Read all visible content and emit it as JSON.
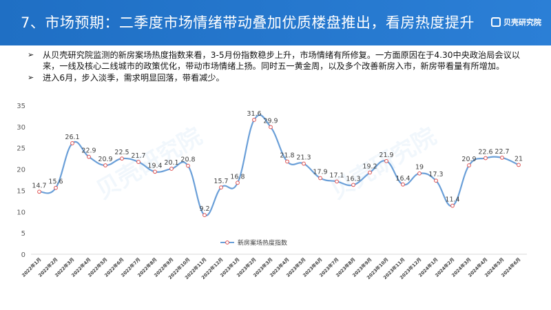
{
  "header": {
    "title": "7、市场预期：二季度市场情绪带动叠加优质楼盘推出，看房热度提升",
    "brand": "贝壳研究院"
  },
  "bullets": [
    "从贝壳研究院监测的新房案场热度指数来看，3-5月份指数稳步上升，市场情绪有所修复。一方面原因在于4.30中央政治局会议以来，一线及核心二线城市的政策优化，带动市场情绪上扬。同时五一黄金周，以及多个改善新房入市，新房带看量有所增加。",
    "进入6月，步入淡季，需求明显回落，带看减少。"
  ],
  "watermark": "贝壳研究院",
  "colors": {
    "header": "#2b7fd6",
    "line": "#6a9fd8",
    "marker": "#e05050"
  },
  "chart_data": {
    "type": "line",
    "categories": [
      "2022年1月",
      "2022年2月",
      "2022年3月",
      "2022年4月",
      "2022年5月",
      "2022年6月",
      "2022年7月",
      "2022年8月",
      "2022年9月",
      "2022年10月",
      "2022年11月",
      "2022年12月",
      "2023年1月",
      "2023年2月",
      "2023年3月",
      "2023年4月",
      "2023年5月",
      "2023年6月",
      "2023年7月",
      "2023年8月",
      "2023年9月",
      "2023年10月",
      "2023年11月",
      "2023年12月",
      "2024年1月",
      "2024年2月",
      "2024年3月",
      "2024年4月",
      "2024年5月",
      "2024年6月"
    ],
    "series": [
      {
        "name": "新房案场热度指数",
        "values": [
          14.7,
          15.6,
          26.1,
          22.9,
          20.9,
          22.5,
          21.7,
          19.4,
          20.1,
          20.8,
          9.2,
          15.7,
          16.8,
          31.6,
          29.9,
          21.8,
          21.3,
          17.9,
          17.1,
          16.3,
          19.2,
          21.9,
          16.4,
          19,
          17.3,
          11.4,
          20.9,
          22.6,
          22.7,
          21
        ]
      }
    ],
    "data_labels": [
      "14.7",
      "15.6",
      "26.1",
      "22.9",
      "20.9",
      "22.5",
      "21.7",
      "19.4",
      "20.1",
      "20.8",
      "9.2",
      "15.7",
      "16.8",
      "31.6",
      "29.9",
      "21.8",
      "21.3",
      "17.9",
      "17.1",
      "16.3",
      "19.2",
      "21.9",
      "16.4",
      "19",
      "17.3",
      "11.4",
      "20.9",
      "22.6",
      "22.7",
      "21"
    ],
    "yticks": [
      "0",
      "5",
      "10",
      "15",
      "20",
      "25",
      "30",
      "35"
    ],
    "ylim": [
      0,
      35
    ],
    "title": "",
    "xlabel": "",
    "ylabel": "",
    "grid": false,
    "legend": "bottom-center"
  }
}
